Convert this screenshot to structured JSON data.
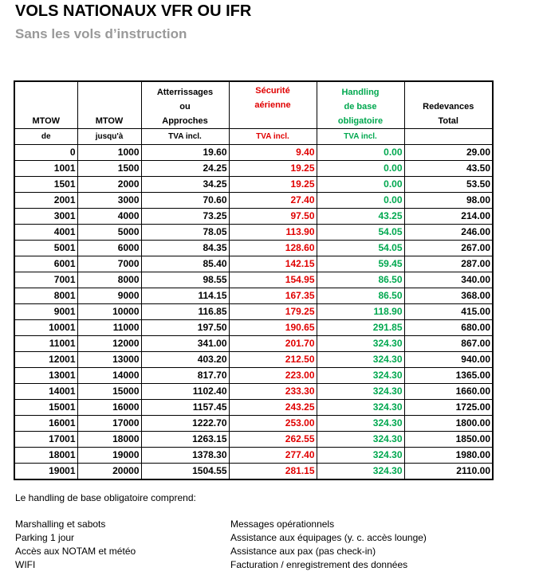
{
  "header": {
    "title": "VOLS NATIONAUX VFR OU IFR",
    "subtitle": "Sans les vols d’instruction"
  },
  "table": {
    "headers": [
      [
        "MTOW"
      ],
      [
        "MTOW"
      ],
      [
        "Atterrissages",
        "ou",
        "Approches"
      ],
      [
        "Sécurité",
        "aérienne"
      ],
      [
        "Handling",
        "de base",
        "obligatoire"
      ],
      [
        "Redevances",
        "Total"
      ]
    ],
    "subheaders": [
      "de",
      "jusqu'à",
      "TVA incl.",
      "TVA incl.",
      "TVA incl."
    ],
    "rows": [
      [
        "0",
        "1000",
        "19.60",
        "9.40",
        "0.00",
        "29.00"
      ],
      [
        "1001",
        "1500",
        "24.25",
        "19.25",
        "0.00",
        "43.50"
      ],
      [
        "1501",
        "2000",
        "34.25",
        "19.25",
        "0.00",
        "53.50"
      ],
      [
        "2001",
        "3000",
        "70.60",
        "27.40",
        "0.00",
        "98.00"
      ],
      [
        "3001",
        "4000",
        "73.25",
        "97.50",
        "43.25",
        "214.00"
      ],
      [
        "4001",
        "5000",
        "78.05",
        "113.90",
        "54.05",
        "246.00"
      ],
      [
        "5001",
        "6000",
        "84.35",
        "128.60",
        "54.05",
        "267.00"
      ],
      [
        "6001",
        "7000",
        "85.40",
        "142.15",
        "59.45",
        "287.00"
      ],
      [
        "7001",
        "8000",
        "98.55",
        "154.95",
        "86.50",
        "340.00"
      ],
      [
        "8001",
        "9000",
        "114.15",
        "167.35",
        "86.50",
        "368.00"
      ],
      [
        "9001",
        "10000",
        "116.85",
        "179.25",
        "118.90",
        "415.00"
      ],
      [
        "10001",
        "11000",
        "197.50",
        "190.65",
        "291.85",
        "680.00"
      ],
      [
        "11001",
        "12000",
        "341.00",
        "201.70",
        "324.30",
        "867.00"
      ],
      [
        "12001",
        "13000",
        "403.20",
        "212.50",
        "324.30",
        "940.00"
      ],
      [
        "13001",
        "14000",
        "817.70",
        "223.00",
        "324.30",
        "1365.00"
      ],
      [
        "14001",
        "15000",
        "1102.40",
        "233.30",
        "324.30",
        "1660.00"
      ],
      [
        "15001",
        "16000",
        "1157.45",
        "243.25",
        "324.30",
        "1725.00"
      ],
      [
        "16001",
        "17000",
        "1222.70",
        "253.00",
        "324.30",
        "1800.00"
      ],
      [
        "17001",
        "18000",
        "1263.15",
        "262.55",
        "324.30",
        "1850.00"
      ],
      [
        "18001",
        "19000",
        "1378.30",
        "277.40",
        "324.30",
        "1980.00"
      ],
      [
        "19001",
        "20000",
        "1504.55",
        "281.15",
        "324.30",
        "2110.00"
      ]
    ]
  },
  "notes": {
    "intro": "Le handling de base obligatoire comprend:",
    "left": [
      "Marshalling et sabots",
      "Parking 1 jour",
      "Accès aux NOTAM et météo",
      "WIFI"
    ],
    "right": [
      "Messages opérationnels",
      "Assistance aux équipages (y. c. accès lounge)",
      "Assistance aux pax (pas check-in)",
      "Facturation / enregistrement des données"
    ]
  }
}
